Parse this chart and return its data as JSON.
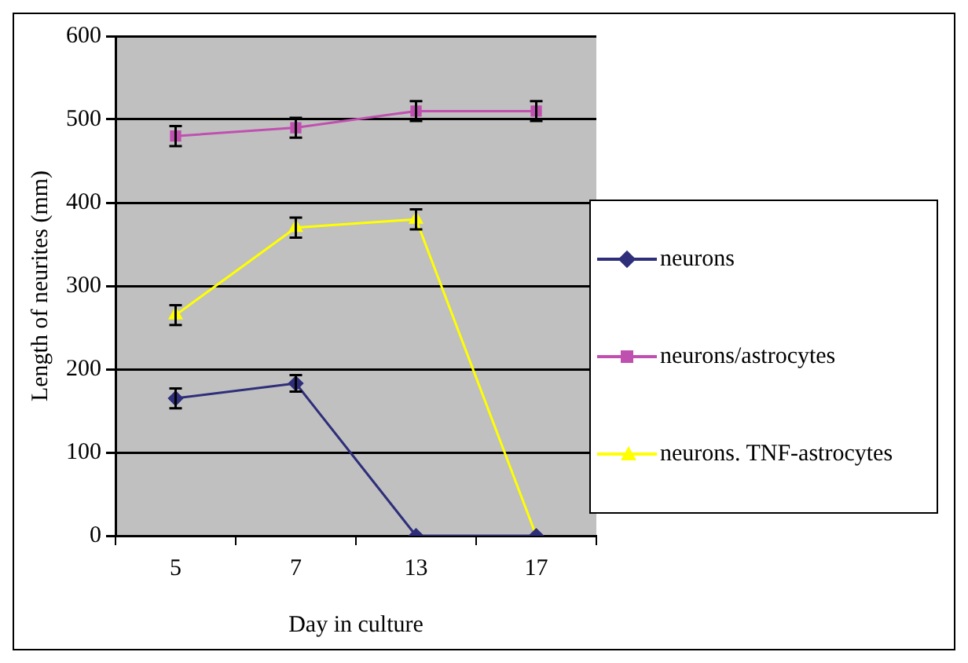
{
  "chart_data": {
    "type": "line",
    "xlabel": "Day in culture",
    "ylabel": "Length of neurites (mm)",
    "categories": [
      "5",
      "7",
      "13",
      "17"
    ],
    "series": [
      {
        "name": "neurons",
        "color": "#2e2e7a",
        "marker": "diamond",
        "values": [
          165,
          183,
          0,
          0
        ],
        "errors": [
          12,
          10,
          null,
          null
        ]
      },
      {
        "name": "neurons/astrocytes",
        "color": "#c050b0",
        "marker": "square",
        "values": [
          480,
          490,
          510,
          510
        ],
        "errors": [
          12,
          12,
          12,
          12
        ]
      },
      {
        "name": "neurons. TNF-astrocytes",
        "color": "#ffff00",
        "marker": "triangle",
        "values": [
          265,
          370,
          380,
          0
        ],
        "errors": [
          12,
          12,
          12,
          null
        ]
      }
    ],
    "ylim": [
      0,
      600
    ],
    "yticks": [
      0,
      100,
      200,
      300,
      400,
      500,
      600
    ],
    "grid": "y",
    "legend": "right"
  }
}
